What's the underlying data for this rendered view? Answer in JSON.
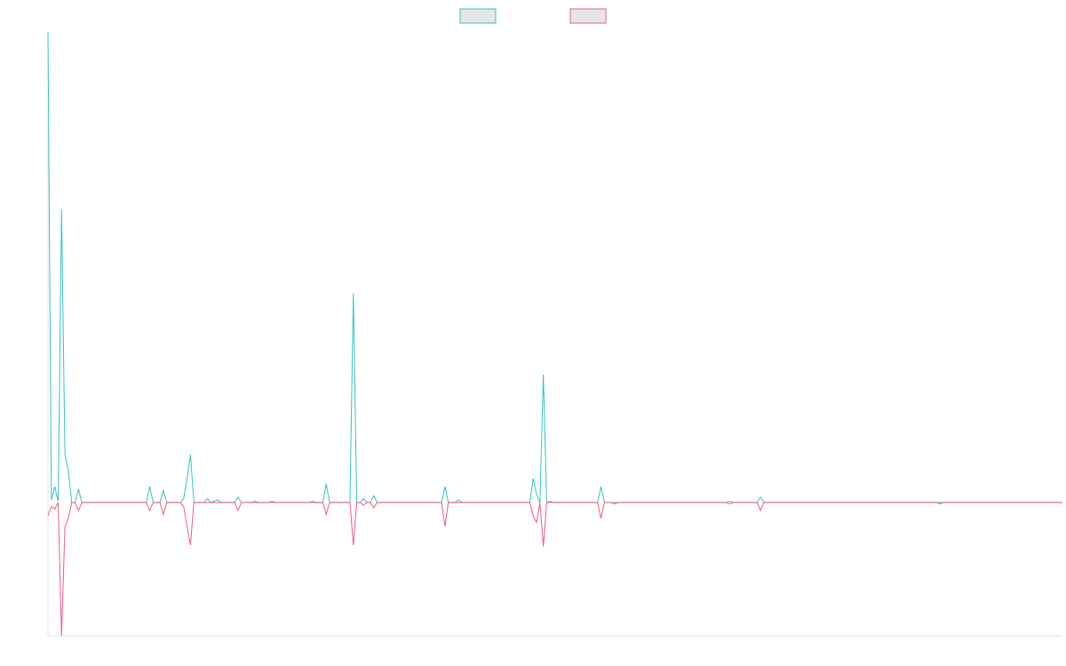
{
  "chart_data": {
    "type": "line",
    "title": "",
    "xlabel": "",
    "ylabel": "",
    "grid": false,
    "legend_position": "top-center",
    "ylim": [
      -100,
      353
    ],
    "x_count": 300,
    "series": [
      {
        "color": "#36c2c2",
        "fill": "#e6e6e6",
        "points": [
          [
            0,
            353
          ],
          [
            1,
            2
          ],
          [
            2,
            12
          ],
          [
            3,
            1
          ],
          [
            4,
            220
          ],
          [
            5,
            36
          ],
          [
            6,
            24
          ],
          [
            7,
            0
          ],
          [
            8,
            0
          ],
          [
            9,
            10
          ],
          [
            10,
            0
          ],
          [
            12,
            0
          ],
          [
            29,
            0
          ],
          [
            30,
            12
          ],
          [
            31,
            0
          ],
          [
            33,
            0
          ],
          [
            34,
            9
          ],
          [
            35,
            0
          ],
          [
            39,
            0
          ],
          [
            40,
            3
          ],
          [
            41,
            18
          ],
          [
            42,
            36
          ],
          [
            43,
            0
          ],
          [
            46,
            0
          ],
          [
            47,
            3
          ],
          [
            48,
            0
          ],
          [
            50,
            2
          ],
          [
            51,
            0
          ],
          [
            55,
            0
          ],
          [
            56,
            4
          ],
          [
            57,
            0
          ],
          [
            60,
            0
          ],
          [
            61,
            1
          ],
          [
            62,
            0
          ],
          [
            65,
            0
          ],
          [
            66,
            1
          ],
          [
            67,
            0
          ],
          [
            77,
            0
          ],
          [
            78,
            1
          ],
          [
            79,
            0
          ],
          [
            81,
            0
          ],
          [
            82,
            14
          ],
          [
            83,
            0
          ],
          [
            89,
            0
          ],
          [
            90,
            157
          ],
          [
            91,
            0
          ],
          [
            92,
            0
          ],
          [
            93,
            3
          ],
          [
            94,
            0
          ],
          [
            95,
            0
          ],
          [
            96,
            5
          ],
          [
            97,
            0
          ],
          [
            98,
            0
          ],
          [
            116,
            0
          ],
          [
            117,
            12
          ],
          [
            118,
            0
          ],
          [
            120,
            0
          ],
          [
            121,
            2
          ],
          [
            122,
            0
          ],
          [
            142,
            0
          ],
          [
            143,
            18
          ],
          [
            144,
            6
          ],
          [
            145,
            0
          ],
          [
            146,
            96
          ],
          [
            147,
            0
          ],
          [
            148,
            1
          ],
          [
            149,
            0
          ],
          [
            162,
            0
          ],
          [
            163,
            12
          ],
          [
            164,
            0
          ],
          [
            166,
            0
          ],
          [
            167,
            0
          ],
          [
            168,
            0
          ],
          [
            200,
            0
          ],
          [
            201,
            1
          ],
          [
            202,
            0
          ],
          [
            209,
            0
          ],
          [
            210,
            4
          ],
          [
            211,
            0
          ],
          [
            299,
            0
          ]
        ]
      },
      {
        "color": "#ef5b82",
        "fill": "#e6e6e6",
        "points": [
          [
            0,
            -10
          ],
          [
            1,
            -3
          ],
          [
            2,
            -5
          ],
          [
            3,
            0
          ],
          [
            4,
            -100
          ],
          [
            5,
            -18
          ],
          [
            6,
            -12
          ],
          [
            7,
            0
          ],
          [
            8,
            0
          ],
          [
            9,
            -6
          ],
          [
            10,
            0
          ],
          [
            12,
            0
          ],
          [
            29,
            0
          ],
          [
            30,
            -6
          ],
          [
            31,
            0
          ],
          [
            33,
            0
          ],
          [
            34,
            -9
          ],
          [
            35,
            0
          ],
          [
            39,
            0
          ],
          [
            40,
            -3
          ],
          [
            41,
            -18
          ],
          [
            42,
            -32
          ],
          [
            43,
            0
          ],
          [
            55,
            0
          ],
          [
            56,
            -6
          ],
          [
            57,
            0
          ],
          [
            81,
            0
          ],
          [
            82,
            -9
          ],
          [
            83,
            0
          ],
          [
            89,
            0
          ],
          [
            90,
            -32
          ],
          [
            91,
            0
          ],
          [
            92,
            0
          ],
          [
            93,
            -2
          ],
          [
            94,
            0
          ],
          [
            95,
            0
          ],
          [
            96,
            -4
          ],
          [
            97,
            0
          ],
          [
            116,
            0
          ],
          [
            117,
            -18
          ],
          [
            118,
            0
          ],
          [
            142,
            0
          ],
          [
            143,
            -10
          ],
          [
            144,
            -15
          ],
          [
            145,
            0
          ],
          [
            146,
            -33
          ],
          [
            147,
            0
          ],
          [
            162,
            0
          ],
          [
            163,
            -12
          ],
          [
            164,
            0
          ],
          [
            166,
            0
          ],
          [
            167,
            -1
          ],
          [
            168,
            0
          ],
          [
            200,
            0
          ],
          [
            201,
            -1
          ],
          [
            202,
            0
          ],
          [
            209,
            0
          ],
          [
            210,
            -6
          ],
          [
            211,
            0
          ],
          [
            262,
            0
          ],
          [
            263,
            -1
          ],
          [
            264,
            0
          ],
          [
            299,
            0
          ]
        ]
      }
    ]
  }
}
